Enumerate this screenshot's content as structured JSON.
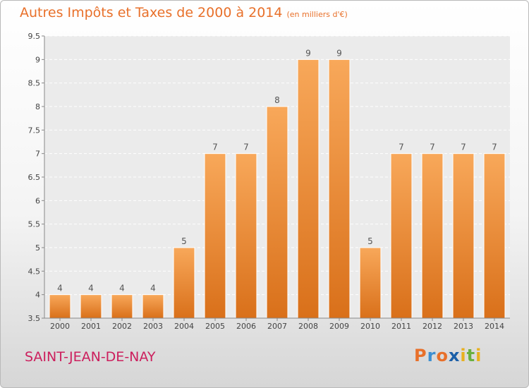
{
  "title": "Autres Impôts et Taxes de 2000 à 2014",
  "subtitle": "(en milliers d'€)",
  "commune": "SAINT-JEAN-DE-NAY",
  "logo": {
    "letters": [
      "P",
      "r",
      "o",
      "x",
      "i",
      "t",
      "i"
    ],
    "colors": [
      "#e8702a",
      "#3d8fd1",
      "#e8702a",
      "#1b5fa8",
      "#e8b020",
      "#69b040",
      "#e8b020"
    ]
  },
  "chart_data": {
    "type": "bar",
    "title": "Autres Impôts et Taxes de 2000 à 2014",
    "subtitle": "(en milliers d'€)",
    "categories": [
      "2000",
      "2001",
      "2002",
      "2003",
      "2004",
      "2005",
      "2006",
      "2007",
      "2008",
      "2009",
      "2010",
      "2011",
      "2012",
      "2013",
      "2014"
    ],
    "values": [
      4,
      4,
      4,
      4,
      5,
      7,
      7,
      8,
      9,
      9,
      5,
      7,
      7,
      7,
      7
    ],
    "data_labels": [
      "4",
      "4",
      "4",
      "4",
      "5",
      "7",
      "7",
      "8",
      "9",
      "9",
      "5",
      "7",
      "7",
      "7",
      "7"
    ],
    "yticks": [
      "3.5",
      "4",
      "4.5",
      "5",
      "5.5",
      "6",
      "6.5",
      "7",
      "7.5",
      "8",
      "8.5",
      "9",
      "9.5"
    ],
    "ylim": [
      3.5,
      9.5
    ],
    "xlabel": "",
    "ylabel": "",
    "grid": true,
    "bar_color": "#f0902f"
  }
}
